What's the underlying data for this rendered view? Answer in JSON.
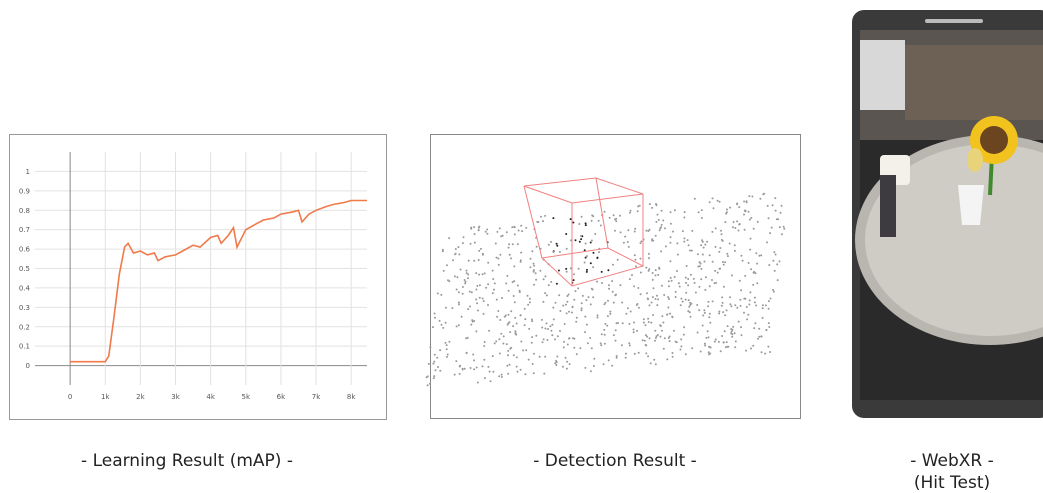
{
  "chart_data": {
    "type": "line",
    "x": [
      0,
      500,
      1000,
      1100,
      1250,
      1400,
      1550,
      1650,
      1800,
      2000,
      2200,
      2400,
      2500,
      2700,
      3000,
      3200,
      3500,
      3700,
      4000,
      4200,
      4300,
      4500,
      4650,
      4750,
      5000,
      5300,
      5500,
      5800,
      6000,
      6300,
      6500,
      6600,
      6800,
      7000,
      7300,
      7500,
      7800,
      8000,
      8200,
      8450
    ],
    "values": [
      0.02,
      0.02,
      0.02,
      0.05,
      0.25,
      0.47,
      0.61,
      0.63,
      0.58,
      0.59,
      0.57,
      0.58,
      0.54,
      0.56,
      0.57,
      0.59,
      0.62,
      0.61,
      0.66,
      0.67,
      0.63,
      0.67,
      0.71,
      0.61,
      0.7,
      0.73,
      0.75,
      0.76,
      0.78,
      0.79,
      0.8,
      0.74,
      0.78,
      0.8,
      0.82,
      0.83,
      0.84,
      0.85,
      0.85,
      0.85
    ],
    "color": "#f07a4a",
    "xlim": [
      -1000,
      8450
    ],
    "ylim": [
      -0.1,
      1.1
    ],
    "xticks": [
      0,
      {
        "value": 1000,
        "label": "1k"
      },
      {
        "value": 2000,
        "label": "2k"
      },
      {
        "value": 3000,
        "label": "3k"
      },
      {
        "value": 4000,
        "label": "4k"
      },
      {
        "value": 5000,
        "label": "5k"
      },
      {
        "value": 6000,
        "label": "6k"
      },
      {
        "value": 7000,
        "label": "7k"
      },
      {
        "value": 8000,
        "label": "8k"
      }
    ],
    "yticks": [
      0,
      0.1,
      0.2,
      0.3,
      0.4,
      0.5,
      0.6,
      0.7,
      0.8,
      0.9,
      1
    ],
    "grid": true
  },
  "captions": {
    "learning": "- Learning Result (mAP) -",
    "detection": "- Detection Result -",
    "webxr": "- WebXR  -",
    "webxr_sub": "(Hit Test)"
  }
}
